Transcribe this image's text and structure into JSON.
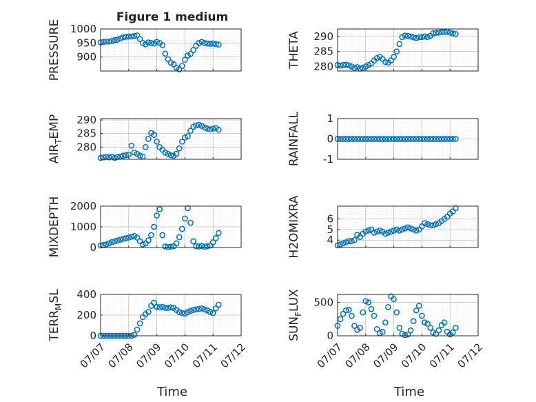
{
  "figure": {
    "title": "Figure 1 medium",
    "x_tick_labels": [
      "07/07",
      "07/08",
      "07/09",
      "07/10",
      "07/11",
      "07/12"
    ],
    "x_label": "Time"
  },
  "chart_data": [
    {
      "type": "scatter",
      "ylabel": "PRESSURE",
      "ylim": [
        850,
        1000
      ],
      "yticks": [
        900,
        950,
        1000
      ],
      "xlim": [
        0,
        5
      ],
      "x": [
        0,
        0.1,
        0.2,
        0.3,
        0.4,
        0.5,
        0.6,
        0.7,
        0.8,
        0.9,
        1.0,
        1.1,
        1.2,
        1.3,
        1.4,
        1.5,
        1.6,
        1.7,
        1.8,
        1.9,
        2.0,
        2.1,
        2.2,
        2.3,
        2.4,
        2.5,
        2.6,
        2.7,
        2.8,
        2.9,
        3.0,
        3.1,
        3.2,
        3.3,
        3.4,
        3.5,
        3.6,
        3.7,
        3.8,
        3.9,
        4.0,
        4.1,
        4.2
      ],
      "y": [
        952,
        954,
        955,
        955,
        957,
        960,
        962,
        966,
        970,
        972,
        973,
        973,
        975,
        977,
        964,
        950,
        945,
        952,
        950,
        948,
        954,
        950,
        942,
        912,
        892,
        880,
        874,
        862,
        856,
        868,
        890,
        905,
        911,
        925,
        940,
        950,
        954,
        950,
        948,
        947,
        948,
        946,
        944
      ]
    },
    {
      "type": "scatter",
      "ylabel": "THETA",
      "ylim": [
        278.5,
        292.5
      ],
      "yticks": [
        280,
        285,
        290
      ],
      "xlim": [
        0,
        5
      ],
      "x": [
        0,
        0.1,
        0.2,
        0.3,
        0.4,
        0.5,
        0.6,
        0.7,
        0.8,
        0.9,
        1.0,
        1.1,
        1.2,
        1.3,
        1.4,
        1.5,
        1.6,
        1.7,
        1.8,
        1.9,
        2.0,
        2.1,
        2.2,
        2.3,
        2.4,
        2.5,
        2.6,
        2.7,
        2.8,
        2.9,
        3.0,
        3.1,
        3.2,
        3.3,
        3.4,
        3.5,
        3.6,
        3.7,
        3.8,
        3.9,
        4.0,
        4.1,
        4.2
      ],
      "y": [
        280.5,
        280.3,
        280.5,
        280.6,
        280.4,
        280.0,
        279.5,
        279.8,
        279.3,
        279.6,
        280.0,
        280.5,
        281.0,
        282.0,
        282.8,
        283.2,
        282.5,
        281.5,
        281.3,
        282.0,
        283.2,
        285.0,
        287.5,
        289.8,
        290.3,
        290.2,
        290.0,
        289.7,
        289.5,
        289.7,
        289.8,
        290.0,
        289.8,
        290.2,
        291.0,
        291.2,
        291.3,
        291.5,
        291.5,
        291.6,
        291.3,
        291.0,
        290.8
      ]
    },
    {
      "type": "scatter",
      "ylabel": "AIR_TEMP",
      "ylim": [
        275.5,
        290.5
      ],
      "yticks": [
        280,
        285,
        290
      ],
      "xlim": [
        0,
        5
      ],
      "x": [
        0,
        0.1,
        0.2,
        0.3,
        0.4,
        0.5,
        0.6,
        0.7,
        0.8,
        0.9,
        1.0,
        1.1,
        1.2,
        1.3,
        1.4,
        1.5,
        1.6,
        1.7,
        1.8,
        1.9,
        2.0,
        2.1,
        2.2,
        2.3,
        2.4,
        2.5,
        2.6,
        2.7,
        2.8,
        2.9,
        3.0,
        3.1,
        3.2,
        3.3,
        3.4,
        3.5,
        3.6,
        3.7,
        3.8,
        3.9,
        4.0,
        4.1,
        4.2
      ],
      "y": [
        276.0,
        276.2,
        276.4,
        276.2,
        276.5,
        276.0,
        276.3,
        276.5,
        276.8,
        277.0,
        277.2,
        280.5,
        278.0,
        277.5,
        276.8,
        276.5,
        280.0,
        283.0,
        285.2,
        284.5,
        282.0,
        280.0,
        279.0,
        278.0,
        277.5,
        277.0,
        276.8,
        277.5,
        279.5,
        282.0,
        283.5,
        284.0,
        286.0,
        287.5,
        288.0,
        288.2,
        287.8,
        287.2,
        286.8,
        286.5,
        286.8,
        287.0,
        286.4
      ]
    },
    {
      "type": "scatter",
      "ylabel": "RAINFALL",
      "ylim": [
        -1,
        1
      ],
      "yticks": [
        -1,
        0,
        1
      ],
      "xlim": [
        0,
        5
      ],
      "x": [
        0,
        0.1,
        0.2,
        0.3,
        0.4,
        0.5,
        0.6,
        0.7,
        0.8,
        0.9,
        1.0,
        1.1,
        1.2,
        1.3,
        1.4,
        1.5,
        1.6,
        1.7,
        1.8,
        1.9,
        2.0,
        2.1,
        2.2,
        2.3,
        2.4,
        2.5,
        2.6,
        2.7,
        2.8,
        2.9,
        3.0,
        3.1,
        3.2,
        3.3,
        3.4,
        3.5,
        3.6,
        3.7,
        3.8,
        3.9,
        4.0,
        4.1,
        4.2
      ],
      "y": [
        0,
        0,
        0,
        0,
        0,
        0,
        0,
        0,
        0,
        0,
        0,
        0,
        0,
        0,
        0,
        0,
        0,
        0,
        0,
        0,
        0,
        0,
        0,
        0,
        0,
        0,
        0,
        0,
        0,
        0,
        0,
        0,
        0,
        0,
        0,
        0,
        0,
        0,
        0,
        0,
        0,
        0,
        0
      ]
    },
    {
      "type": "scatter",
      "ylabel": "MIXDEPTH",
      "ylim": [
        0,
        2000
      ],
      "yticks": [
        0,
        1000,
        2000
      ],
      "xlim": [
        0,
        5
      ],
      "x": [
        0,
        0.1,
        0.2,
        0.3,
        0.4,
        0.5,
        0.6,
        0.7,
        0.8,
        0.9,
        1.0,
        1.1,
        1.2,
        1.3,
        1.4,
        1.5,
        1.6,
        1.7,
        1.8,
        1.9,
        2.0,
        2.1,
        2.2,
        2.3,
        2.4,
        2.5,
        2.6,
        2.7,
        2.8,
        2.9,
        3.0,
        3.1,
        3.2,
        3.3,
        3.4,
        3.5,
        3.6,
        3.7,
        3.8,
        3.9,
        4.0,
        4.1,
        4.2
      ],
      "y": [
        100,
        120,
        150,
        200,
        260,
        300,
        340,
        380,
        420,
        450,
        480,
        520,
        560,
        480,
        300,
        150,
        200,
        350,
        600,
        1000,
        1550,
        1850,
        600,
        50,
        30,
        40,
        60,
        200,
        500,
        900,
        1400,
        1900,
        1200,
        300,
        60,
        50,
        80,
        40,
        60,
        100,
        250,
        450,
        700
      ]
    },
    {
      "type": "scatter",
      "ylabel": "H2OMIXRA",
      "ylim": [
        3.3,
        7.2
      ],
      "yticks": [
        4,
        5,
        6
      ],
      "xlim": [
        0,
        5
      ],
      "x": [
        0,
        0.1,
        0.2,
        0.3,
        0.4,
        0.5,
        0.6,
        0.7,
        0.8,
        0.9,
        1.0,
        1.1,
        1.2,
        1.3,
        1.4,
        1.5,
        1.6,
        1.7,
        1.8,
        1.9,
        2.0,
        2.1,
        2.2,
        2.3,
        2.4,
        2.5,
        2.6,
        2.7,
        2.8,
        2.9,
        3.0,
        3.1,
        3.2,
        3.3,
        3.4,
        3.5,
        3.6,
        3.7,
        3.8,
        3.9,
        4.0,
        4.1,
        4.2
      ],
      "y": [
        3.5,
        3.6,
        3.7,
        3.8,
        3.9,
        3.9,
        4.0,
        4.5,
        4.3,
        4.6,
        4.8,
        4.9,
        5.0,
        4.7,
        4.8,
        4.9,
        4.8,
        4.6,
        4.7,
        4.8,
        4.9,
        5.0,
        4.9,
        5.0,
        5.1,
        5.2,
        5.1,
        5.0,
        4.9,
        5.0,
        5.3,
        5.6,
        5.5,
        5.4,
        5.4,
        5.5,
        5.6,
        5.8,
        6.0,
        6.2,
        6.5,
        6.7,
        7.0
      ]
    },
    {
      "type": "scatter",
      "ylabel": "TERR_MSL",
      "ylim": [
        0,
        400
      ],
      "yticks": [
        0,
        200,
        400
      ],
      "xlim": [
        0,
        5
      ],
      "x": [
        0,
        0.1,
        0.2,
        0.3,
        0.4,
        0.5,
        0.6,
        0.7,
        0.8,
        0.9,
        1.0,
        1.1,
        1.2,
        1.3,
        1.4,
        1.5,
        1.6,
        1.7,
        1.8,
        1.9,
        2.0,
        2.1,
        2.2,
        2.3,
        2.4,
        2.5,
        2.6,
        2.7,
        2.8,
        2.9,
        3.0,
        3.1,
        3.2,
        3.3,
        3.4,
        3.5,
        3.6,
        3.7,
        3.8,
        3.9,
        4.0,
        4.1,
        4.2
      ],
      "y": [
        0,
        0,
        0,
        0,
        0,
        0,
        0,
        0,
        0,
        0,
        0,
        0,
        10,
        60,
        120,
        180,
        210,
        230,
        290,
        320,
        280,
        275,
        280,
        270,
        270,
        275,
        270,
        250,
        230,
        220,
        215,
        230,
        240,
        250,
        255,
        260,
        265,
        255,
        245,
        230,
        220,
        265,
        300
      ]
    },
    {
      "type": "scatter",
      "ylabel": "SUN_FLUX",
      "ylim": [
        0,
        620
      ],
      "yticks": [
        0,
        500
      ],
      "xlim": [
        0,
        5
      ],
      "x": [
        0,
        0.1,
        0.2,
        0.3,
        0.4,
        0.5,
        0.6,
        0.7,
        0.8,
        0.9,
        1.0,
        1.1,
        1.2,
        1.3,
        1.4,
        1.5,
        1.6,
        1.7,
        1.8,
        1.9,
        2.0,
        2.1,
        2.2,
        2.3,
        2.4,
        2.5,
        2.6,
        2.7,
        2.8,
        2.9,
        3.0,
        3.1,
        3.2,
        3.3,
        3.4,
        3.5,
        3.6,
        3.7,
        3.8,
        3.9,
        4.0,
        4.1,
        4.2
      ],
      "y": [
        150,
        250,
        330,
        380,
        390,
        300,
        150,
        90,
        120,
        350,
        520,
        500,
        400,
        300,
        100,
        40,
        60,
        200,
        430,
        590,
        550,
        350,
        120,
        30,
        10,
        20,
        80,
        220,
        380,
        450,
        300,
        200,
        180,
        120,
        50,
        30,
        80,
        160,
        200,
        60,
        20,
        50,
        120
      ]
    }
  ]
}
